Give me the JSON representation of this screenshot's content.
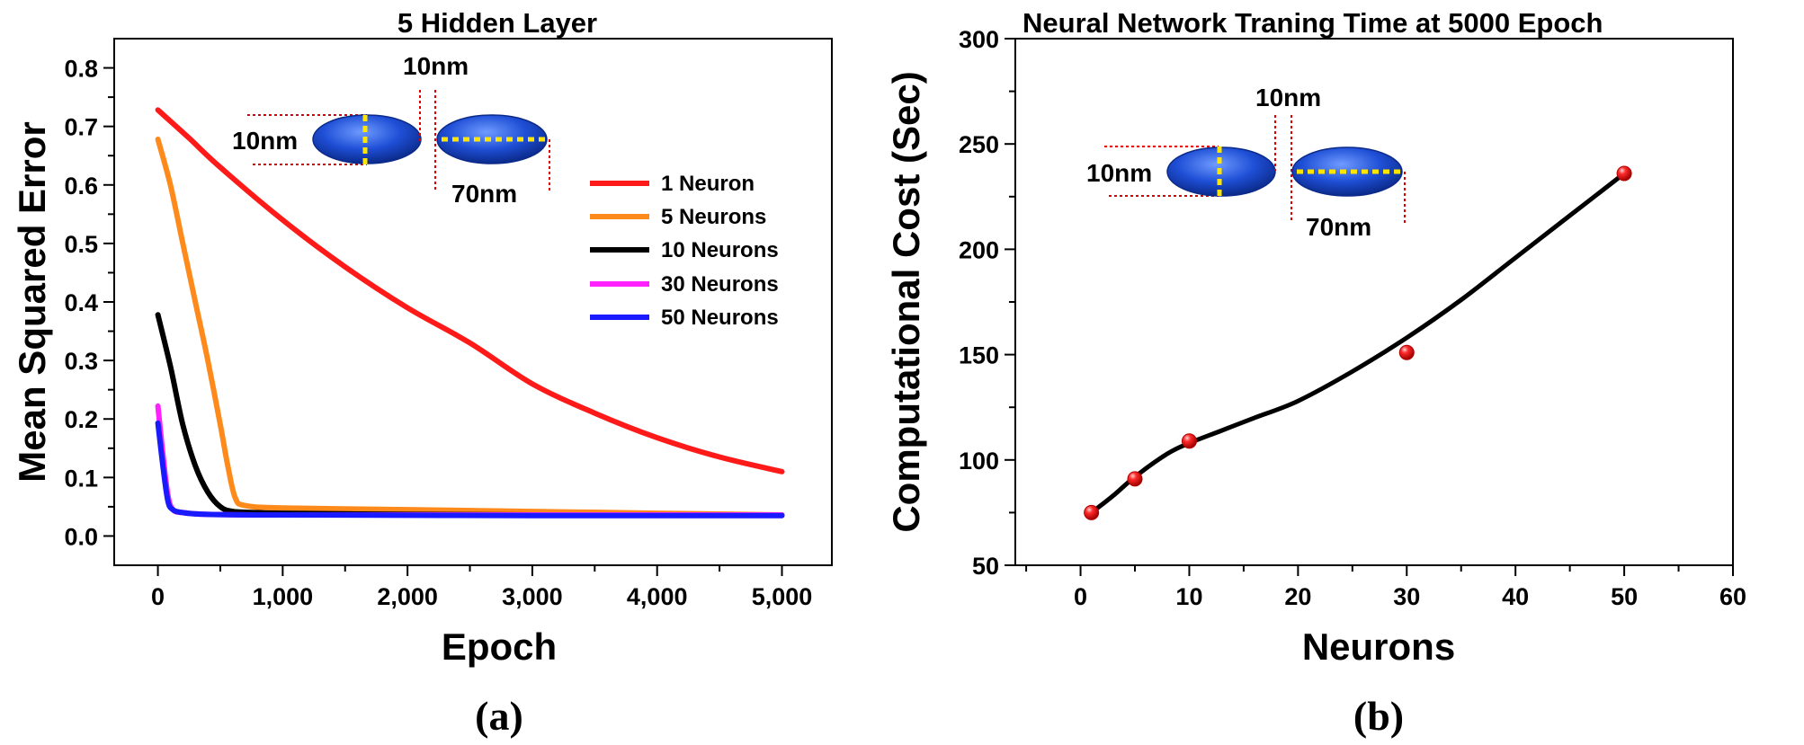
{
  "colors": {
    "red": "#ff1a1a",
    "orange": "#ff8a1c",
    "black": "#000000",
    "magenta": "#ff22ff",
    "blue": "#1a1aff",
    "ellipse": "#1f4fd6",
    "dashed_yellow": "#ffe600",
    "dim_line_red": "#e00000"
  },
  "icons": [
    "ellipsoid-nanoparticle-icon"
  ],
  "chart_data": [
    {
      "type": "line",
      "panel_label": "(a)",
      "title": "5 Hidden Layer",
      "xlabel": "Epoch",
      "ylabel": "Mean Squared Error",
      "xlim": [
        -350,
        5400
      ],
      "ylim": [
        -0.05,
        0.85
      ],
      "xticks": [
        0,
        1000,
        2000,
        3000,
        4000,
        5000
      ],
      "xtick_labels": [
        "0",
        "1,000",
        "2,000",
        "3,000",
        "4,000",
        "5,000"
      ],
      "yticks": [
        0.0,
        0.1,
        0.2,
        0.3,
        0.4,
        0.5,
        0.6,
        0.7,
        0.8
      ],
      "ytick_labels": [
        "0.0",
        "0.1",
        "0.2",
        "0.3",
        "0.4",
        "0.5",
        "0.6",
        "0.7",
        "0.8"
      ],
      "legend_position": "right",
      "series": [
        {
          "name": "1 Neuron",
          "color": "#ff1a1a",
          "x": [
            0,
            250,
            500,
            1000,
            1500,
            2000,
            2500,
            3000,
            3500,
            4000,
            4500,
            5000
          ],
          "y": [
            0.728,
            0.68,
            0.63,
            0.54,
            0.46,
            0.39,
            0.33,
            0.26,
            0.21,
            0.168,
            0.135,
            0.11
          ]
        },
        {
          "name": "5 Neurons",
          "color": "#ff8a1c",
          "x": [
            0,
            100,
            200,
            300,
            400,
            500,
            560,
            620,
            700,
            1000,
            2000,
            3000,
            4000,
            5000
          ],
          "y": [
            0.678,
            0.6,
            0.5,
            0.4,
            0.3,
            0.19,
            0.12,
            0.065,
            0.052,
            0.048,
            0.045,
            0.042,
            0.039,
            0.036
          ]
        },
        {
          "name": "10 Neurons",
          "color": "#000000",
          "x": [
            0,
            100,
            200,
            300,
            400,
            500,
            600,
            800,
            1000,
            2000,
            3000,
            4000,
            5000
          ],
          "y": [
            0.378,
            0.29,
            0.19,
            0.12,
            0.075,
            0.05,
            0.042,
            0.04,
            0.039,
            0.037,
            0.036,
            0.036,
            0.036
          ]
        },
        {
          "name": "30 Neurons",
          "color": "#ff22ff",
          "x": [
            0,
            40,
            80,
            120,
            200,
            400,
            1000,
            3000,
            5000
          ],
          "y": [
            0.222,
            0.14,
            0.07,
            0.045,
            0.04,
            0.037,
            0.036,
            0.036,
            0.036
          ]
        },
        {
          "name": "50 Neurons",
          "color": "#1a1aff",
          "x": [
            0,
            40,
            80,
            120,
            200,
            400,
            1000,
            3000,
            5000
          ],
          "y": [
            0.193,
            0.12,
            0.06,
            0.045,
            0.04,
            0.037,
            0.036,
            0.035,
            0.035
          ]
        }
      ],
      "inset": {
        "width_label": "10nm",
        "height_label": "10nm",
        "length_label": "70nm"
      }
    },
    {
      "type": "line",
      "panel_label": "(b)",
      "title": "Neural Network Traning Time at 5000 Epoch",
      "xlabel": "Neurons",
      "ylabel": "Computational Cost (Sec)",
      "xlim": [
        -6,
        60
      ],
      "ylim": [
        50,
        300
      ],
      "xticks": [
        0,
        10,
        20,
        30,
        40,
        50,
        60
      ],
      "xtick_labels": [
        "0",
        "10",
        "20",
        "30",
        "40",
        "50",
        "60"
      ],
      "yticks": [
        50,
        100,
        150,
        200,
        250,
        300
      ],
      "ytick_labels": [
        "50",
        "100",
        "150",
        "200",
        "250",
        "300"
      ],
      "points": {
        "x": [
          1,
          5,
          10,
          30,
          50
        ],
        "y": [
          75,
          91,
          109,
          151,
          236
        ],
        "color": "#ff1a1a"
      },
      "fit_curve": {
        "x": [
          1,
          3,
          5,
          8,
          10,
          13,
          16,
          20,
          25,
          30,
          35,
          40,
          45,
          50
        ],
        "y": [
          75,
          83,
          92,
          103,
          108,
          114,
          120,
          128,
          142,
          158,
          176,
          196,
          216,
          236
        ],
        "color": "#000000"
      },
      "inset": {
        "width_label": "10nm",
        "height_label": "10nm",
        "length_label": "70nm"
      }
    }
  ]
}
